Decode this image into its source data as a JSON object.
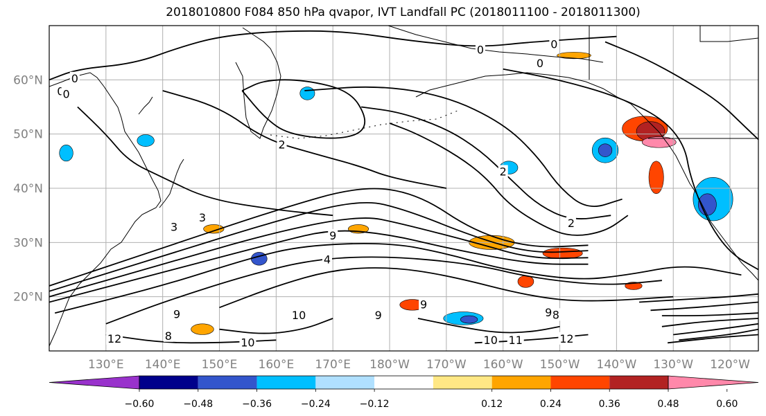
{
  "figure": {
    "title": "2018010800 F084 850 hPa qvapor, IVT Landfall PC (2018011100 - 2018011300)"
  },
  "map": {
    "projection": "PlateCarree",
    "lon_range": [
      120,
      245
    ],
    "lat_range": [
      10,
      70
    ],
    "grid": true,
    "lat_ticks": [
      {
        "lat": 20,
        "label": "20°N"
      },
      {
        "lat": 30,
        "label": "30°N"
      },
      {
        "lat": 40,
        "label": "40°N"
      },
      {
        "lat": 50,
        "label": "50°N"
      },
      {
        "lat": 60,
        "label": "60°N"
      }
    ],
    "lon_ticks": [
      {
        "lon": 130,
        "label": "130°E"
      },
      {
        "lon": 140,
        "label": "140°E"
      },
      {
        "lon": 150,
        "label": "150°E"
      },
      {
        "lon": 160,
        "label": "160°E"
      },
      {
        "lon": 170,
        "label": "170°E"
      },
      {
        "lon": 180,
        "label": "180°W"
      },
      {
        "lon": 190,
        "label": "170°W"
      },
      {
        "lon": 200,
        "label": "160°W"
      },
      {
        "lon": 210,
        "label": "150°W"
      },
      {
        "lon": 220,
        "label": "140°W"
      },
      {
        "lon": 230,
        "label": "130°W"
      },
      {
        "lon": 240,
        "label": "120°W"
      }
    ],
    "contour_labels": [
      {
        "text": "0",
        "lon": 124.5,
        "lat": 60.2
      },
      {
        "text": "0",
        "lon": 122,
        "lat": 57.8
      },
      {
        "text": "0",
        "lon": 196,
        "lat": 65.5
      },
      {
        "text": "0",
        "lon": 209,
        "lat": 66.5
      },
      {
        "text": "0",
        "lon": 206.5,
        "lat": 63
      },
      {
        "text": "2",
        "lon": 161,
        "lat": 48
      },
      {
        "text": "2",
        "lon": 200,
        "lat": 43
      },
      {
        "text": "2",
        "lon": 212,
        "lat": 33.5
      },
      {
        "text": "3",
        "lon": 142,
        "lat": 32.8
      },
      {
        "text": "3",
        "lon": 147,
        "lat": 34.5
      },
      {
        "text": "4",
        "lon": 169,
        "lat": 26.8
      },
      {
        "text": "9",
        "lon": 170,
        "lat": 31.2
      },
      {
        "text": "10",
        "lon": 164,
        "lat": 16.5
      },
      {
        "text": "10",
        "lon": 155,
        "lat": 11.5
      },
      {
        "text": "10",
        "lon": 197.8,
        "lat": 11.9
      },
      {
        "text": "11",
        "lon": 202.2,
        "lat": 11.9
      },
      {
        "text": "12",
        "lon": 131.5,
        "lat": 12.2
      },
      {
        "text": "12",
        "lon": 211.2,
        "lat": 12.2
      },
      {
        "text": "9",
        "lon": 186,
        "lat": 18.5
      },
      {
        "text": "9",
        "lon": 178,
        "lat": 16.5
      },
      {
        "text": "8",
        "lon": 209.3,
        "lat": 16.6
      },
      {
        "text": "9",
        "lon": 208,
        "lat": 17
      },
      {
        "text": "8",
        "lon": 141,
        "lat": 12.7
      },
      {
        "text": "9",
        "lon": 142.5,
        "lat": 16.7
      },
      {
        "text": "0",
        "lon": 123,
        "lat": 57.3
      }
    ],
    "colorbar": {
      "ticks": [
        "−0.60",
        "−0.48",
        "−0.36",
        "−0.24",
        "−0.12",
        "0.12",
        "0.24",
        "0.36",
        "0.48",
        "0.60"
      ],
      "colors": [
        "#9932cc",
        "#00008b",
        "#3355cc",
        "#00bfff",
        "#b0e0ff",
        "#ffffff",
        "#ffe885",
        "#ffa500",
        "#ff4500",
        "#b22222",
        "#ff88aa"
      ]
    },
    "fill_blobs": [
      {
        "lon": 225,
        "lat": 51,
        "rx": 4,
        "ry": 2.3,
        "color": "#ff4500"
      },
      {
        "lon": 226,
        "lat": 50.5,
        "rx": 2.5,
        "ry": 1.8,
        "color": "#b22222"
      },
      {
        "lon": 227.5,
        "lat": 48.5,
        "rx": 3,
        "ry": 1,
        "color": "#ff88aa"
      },
      {
        "lon": 218,
        "lat": 47,
        "rx": 2.3,
        "ry": 2.3,
        "color": "#00bfff"
      },
      {
        "lon": 218,
        "lat": 47,
        "rx": 1.2,
        "ry": 1.2,
        "color": "#3355cc"
      },
      {
        "lon": 227,
        "lat": 42,
        "rx": 1.3,
        "ry": 3,
        "color": "#ff4500"
      },
      {
        "lon": 237,
        "lat": 38,
        "rx": 3.5,
        "ry": 4,
        "color": "#00bfff"
      },
      {
        "lon": 236,
        "lat": 37,
        "rx": 1.6,
        "ry": 2,
        "color": "#3355cc"
      },
      {
        "lon": 157,
        "lat": 27,
        "rx": 1.4,
        "ry": 1.2,
        "color": "#3355cc"
      },
      {
        "lon": 184,
        "lat": 18.5,
        "rx": 2.2,
        "ry": 1,
        "color": "#ff4500"
      },
      {
        "lon": 193,
        "lat": 16,
        "rx": 3.5,
        "ry": 1.2,
        "color": "#00bfff"
      },
      {
        "lon": 194,
        "lat": 15.8,
        "rx": 1.5,
        "ry": 0.7,
        "color": "#3355cc"
      },
      {
        "lon": 198,
        "lat": 30,
        "rx": 4,
        "ry": 1.3,
        "color": "#ffa500"
      },
      {
        "lon": 210.5,
        "lat": 28,
        "rx": 3.5,
        "ry": 1,
        "color": "#ff4500"
      },
      {
        "lon": 174.5,
        "lat": 32.5,
        "rx": 1.8,
        "ry": 0.8,
        "color": "#ffa500"
      },
      {
        "lon": 149,
        "lat": 32.5,
        "rx": 1.8,
        "ry": 0.8,
        "color": "#ffa500"
      },
      {
        "lon": 212.5,
        "lat": 64.5,
        "rx": 3,
        "ry": 0.6,
        "color": "#ffa500"
      },
      {
        "lon": 204,
        "lat": 22.8,
        "rx": 1.4,
        "ry": 1.1,
        "color": "#ff4500"
      },
      {
        "lon": 201,
        "lat": 43.8,
        "rx": 1.6,
        "ry": 1.2,
        "color": "#00bfff"
      },
      {
        "lon": 137,
        "lat": 48.8,
        "rx": 1.5,
        "ry": 1.1,
        "color": "#00bfff"
      },
      {
        "lon": 165.5,
        "lat": 57.5,
        "rx": 1.3,
        "ry": 1.2,
        "color": "#00bfff"
      },
      {
        "lon": 223,
        "lat": 22,
        "rx": 1.5,
        "ry": 0.7,
        "color": "#ff4500"
      },
      {
        "lon": 147,
        "lat": 14,
        "rx": 2,
        "ry": 1,
        "color": "#ffa500"
      },
      {
        "lon": 123,
        "lat": 46.5,
        "rx": 1.2,
        "ry": 1.5,
        "color": "#00bfff"
      }
    ],
    "contour_lines": [
      [
        [
          120,
          22
        ],
        [
          140,
          29
        ],
        [
          160,
          36
        ],
        [
          175,
          40.5
        ],
        [
          185,
          39
        ],
        [
          195,
          32
        ],
        [
          205,
          29
        ],
        [
          215,
          29.5
        ]
      ],
      [
        [
          120,
          21
        ],
        [
          140,
          27.5
        ],
        [
          160,
          34
        ],
        [
          175,
          38
        ],
        [
          183,
          36
        ],
        [
          195,
          31
        ],
        [
          205,
          28
        ],
        [
          215,
          28.5
        ]
      ],
      [
        [
          120,
          20
        ],
        [
          140,
          26
        ],
        [
          160,
          32
        ],
        [
          175,
          35
        ],
        [
          182,
          33.5
        ],
        [
          195,
          30
        ],
        [
          205,
          27
        ],
        [
          215,
          27.2
        ]
      ],
      [
        [
          120,
          19
        ],
        [
          140,
          24.5
        ],
        [
          160,
          30
        ],
        [
          170,
          32.5
        ],
        [
          180,
          31.5
        ],
        [
          190,
          29
        ],
        [
          205,
          26
        ],
        [
          215,
          26
        ]
      ],
      [
        [
          121,
          17
        ],
        [
          140,
          22
        ],
        [
          155,
          27
        ],
        [
          165,
          29.5
        ],
        [
          180,
          30
        ],
        [
          190,
          28
        ],
        [
          200,
          25
        ],
        [
          213,
          23
        ],
        [
          222,
          24
        ],
        [
          232,
          26
        ],
        [
          242,
          24
        ]
      ],
      [
        [
          130,
          15
        ],
        [
          140,
          19
        ],
        [
          155,
          24
        ],
        [
          167,
          27
        ],
        [
          180,
          27.5
        ],
        [
          195,
          26
        ],
        [
          205,
          23.5
        ],
        [
          218,
          22
        ],
        [
          228,
          23
        ]
      ],
      [
        [
          150,
          18
        ],
        [
          160,
          22
        ],
        [
          170,
          25
        ],
        [
          180,
          25.5
        ],
        [
          190,
          24
        ],
        [
          205,
          20
        ],
        [
          215,
          19
        ],
        [
          230,
          20
        ]
      ],
      [
        [
          180,
          52
        ],
        [
          185,
          50
        ],
        [
          192,
          46
        ],
        [
          197,
          42
        ],
        [
          201,
          37
        ],
        [
          207,
          33
        ],
        [
          212,
          31
        ],
        [
          218,
          32
        ],
        [
          222,
          35
        ]
      ],
      [
        [
          175,
          55
        ],
        [
          182,
          54
        ],
        [
          190,
          51
        ],
        [
          196,
          47
        ],
        [
          201,
          42
        ],
        [
          206,
          37
        ],
        [
          212,
          34
        ],
        [
          219,
          35
        ]
      ],
      [
        [
          165,
          58
        ],
        [
          178,
          59
        ],
        [
          190,
          57
        ],
        [
          200,
          52
        ],
        [
          206,
          46
        ],
        [
          210,
          40
        ],
        [
          215,
          36
        ],
        [
          221,
          38
        ]
      ],
      [
        [
          140,
          58
        ],
        [
          150,
          55
        ],
        [
          158,
          49
        ],
        [
          168,
          46
        ],
        [
          175,
          44
        ],
        [
          180,
          42
        ],
        [
          190,
          40
        ]
      ],
      [
        [
          125,
          55
        ],
        [
          130,
          50
        ],
        [
          134,
          45
        ],
        [
          140,
          42
        ],
        [
          148,
          38
        ],
        [
          160,
          36
        ],
        [
          170,
          35
        ]
      ],
      [
        [
          200,
          62
        ],
        [
          210,
          60
        ],
        [
          220,
          57
        ],
        [
          228,
          53
        ],
        [
          232,
          48
        ],
        [
          233,
          42
        ],
        [
          236,
          34
        ],
        [
          240,
          28
        ],
        [
          245,
          25
        ]
      ],
      [
        [
          218,
          67
        ],
        [
          225,
          64
        ],
        [
          232,
          60
        ],
        [
          238,
          56
        ],
        [
          242,
          52
        ],
        [
          245,
          49
        ]
      ],
      [
        [
          120,
          60
        ],
        [
          125,
          62
        ],
        [
          135,
          63
        ],
        [
          143,
          66
        ],
        [
          150,
          68
        ],
        [
          160,
          69
        ],
        [
          172,
          69
        ],
        [
          185,
          67
        ],
        [
          196,
          66
        ],
        [
          205,
          67
        ],
        [
          220,
          68
        ]
      ],
      [
        [
          154,
          58
        ],
        [
          158,
          53
        ],
        [
          162,
          50
        ],
        [
          170,
          49
        ],
        [
          175,
          50
        ],
        [
          176,
          53
        ],
        [
          173,
          58
        ],
        [
          165,
          60
        ],
        [
          158,
          60
        ],
        [
          154,
          58
        ]
      ],
      [
        [
          224,
          19
        ],
        [
          232,
          19.5
        ],
        [
          240,
          20
        ],
        [
          245,
          20.5
        ]
      ],
      [
        [
          226,
          17.5
        ],
        [
          234,
          18
        ],
        [
          245,
          19
        ]
      ],
      [
        [
          228,
          16.5
        ],
        [
          236,
          16.5
        ],
        [
          245,
          17
        ]
      ],
      [
        [
          228,
          14.5
        ],
        [
          236,
          15.5
        ],
        [
          245,
          16
        ]
      ],
      [
        [
          230,
          13
        ],
        [
          238,
          14
        ],
        [
          245,
          15
        ]
      ],
      [
        [
          231,
          12
        ],
        [
          240,
          13
        ],
        [
          245,
          14
        ]
      ],
      [
        [
          229,
          11.5
        ],
        [
          238,
          12.5
        ],
        [
          245,
          13
        ]
      ],
      [
        [
          185,
          16
        ],
        [
          192,
          14.5
        ],
        [
          199,
          13.3
        ],
        [
          205,
          13.5
        ],
        [
          210,
          14.5
        ]
      ],
      [
        [
          195,
          11.5
        ],
        [
          205,
          12
        ],
        [
          215,
          13
        ]
      ],
      [
        [
          130,
          13
        ],
        [
          140,
          11.5
        ],
        [
          150,
          11.5
        ],
        [
          160,
          12
        ]
      ],
      [
        [
          150,
          14
        ],
        [
          158,
          13
        ],
        [
          165,
          14
        ],
        [
          170,
          16
        ]
      ]
    ]
  }
}
